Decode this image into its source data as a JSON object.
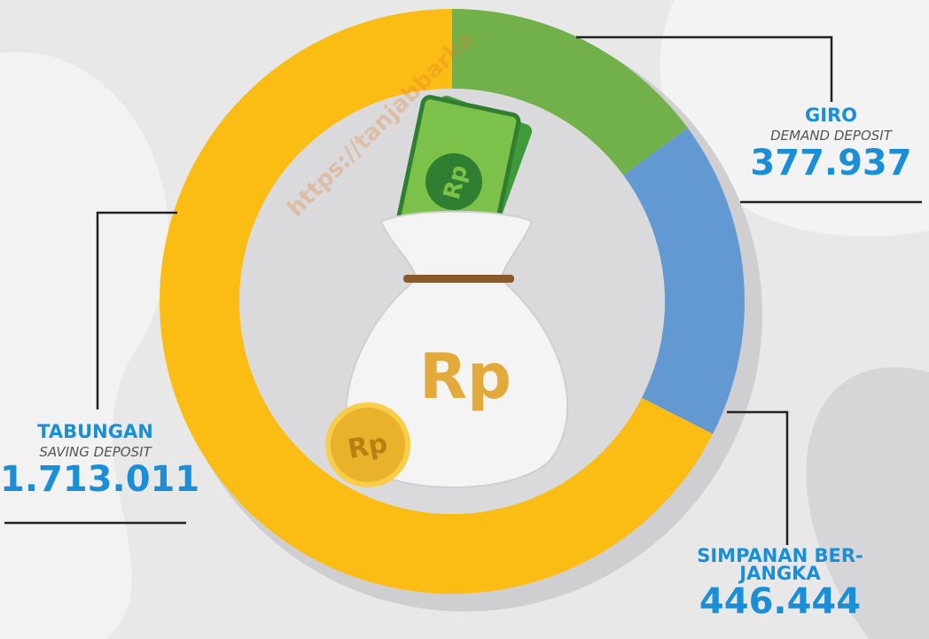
{
  "chart_data": {
    "type": "pie",
    "donut": true,
    "categories": [
      "GIRO",
      "SIMPANAN BER-JANGKA",
      "TABUNGAN"
    ],
    "sublabels": [
      "DEMAND DEPOSIT",
      null,
      "SAVING DEPOSIT"
    ],
    "values": [
      377937,
      446444,
      1713011
    ],
    "value_labels": [
      "377.937",
      "446.444",
      "1.713.011"
    ],
    "colors": [
      "#72b04a",
      "#6399d3",
      "#fbbd13"
    ],
    "watermark": "https://tanjabbarka",
    "icon_text": "Rp"
  }
}
